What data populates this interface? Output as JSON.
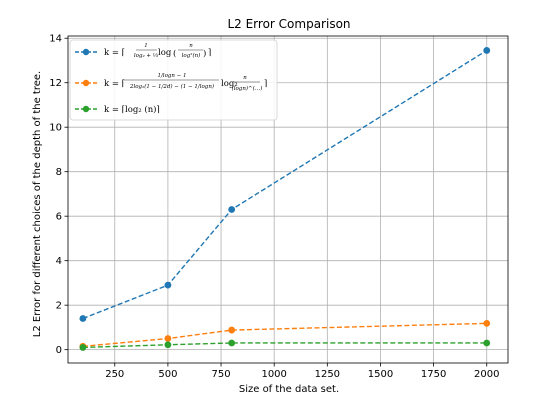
{
  "chart_data": {
    "type": "line",
    "title": "L2 Error Comparison",
    "xlabel": "Size of the data set.",
    "ylabel": "L2 Error for different choices of the depth of the tree.",
    "xlim": [
      30,
      2100
    ],
    "ylim": [
      -0.6,
      14.1
    ],
    "xticks": [
      250,
      500,
      750,
      1000,
      1250,
      1500,
      1750,
      2000
    ],
    "yticks": [
      0,
      2,
      4,
      6,
      8,
      10,
      12,
      14
    ],
    "grid": true,
    "legend_position": "top-left",
    "x": [
      100,
      500,
      800,
      2000
    ],
    "series": [
      {
        "name": "k = ⌈ 1/(log₂ + 1/3) · log( n / log²(n) ) ⌉",
        "color": "#1f77b4",
        "values": [
          1.4,
          2.9,
          6.3,
          13.45
        ]
      },
      {
        "name": "k = ⌈ (1/logn − 1) / (2log₂(1 − 1/2d) − (1 − 1/logn)) · log₂( n / (logn)^(...) ) ⌉",
        "color": "#ff7f0e",
        "values": [
          0.15,
          0.5,
          0.88,
          1.18
        ]
      },
      {
        "name": "k = ⌈log₂(n)⌉",
        "color": "#2ca02c",
        "values": [
          0.1,
          0.22,
          0.3,
          0.3
        ]
      }
    ]
  },
  "legend": [
    {
      "prefix": "k = ⌈",
      "frac_num": "1",
      "frac_den": "log₂ + ⅓",
      "suffix": "log",
      "inner_num": "n",
      "inner_den": "log²(n)",
      "close": "⌉"
    },
    {
      "prefix": "k = ⌈",
      "frac_num": "1/logn − 1",
      "frac_den": "2log₂(1 − 1/2d) − (1 − 1/logn)",
      "suffix": "log₂",
      "inner_num": "n",
      "inner_den": "(logn)^(…)",
      "close": "⌉"
    },
    {
      "text": "k = ⌈log₂ (n)⌉"
    }
  ]
}
